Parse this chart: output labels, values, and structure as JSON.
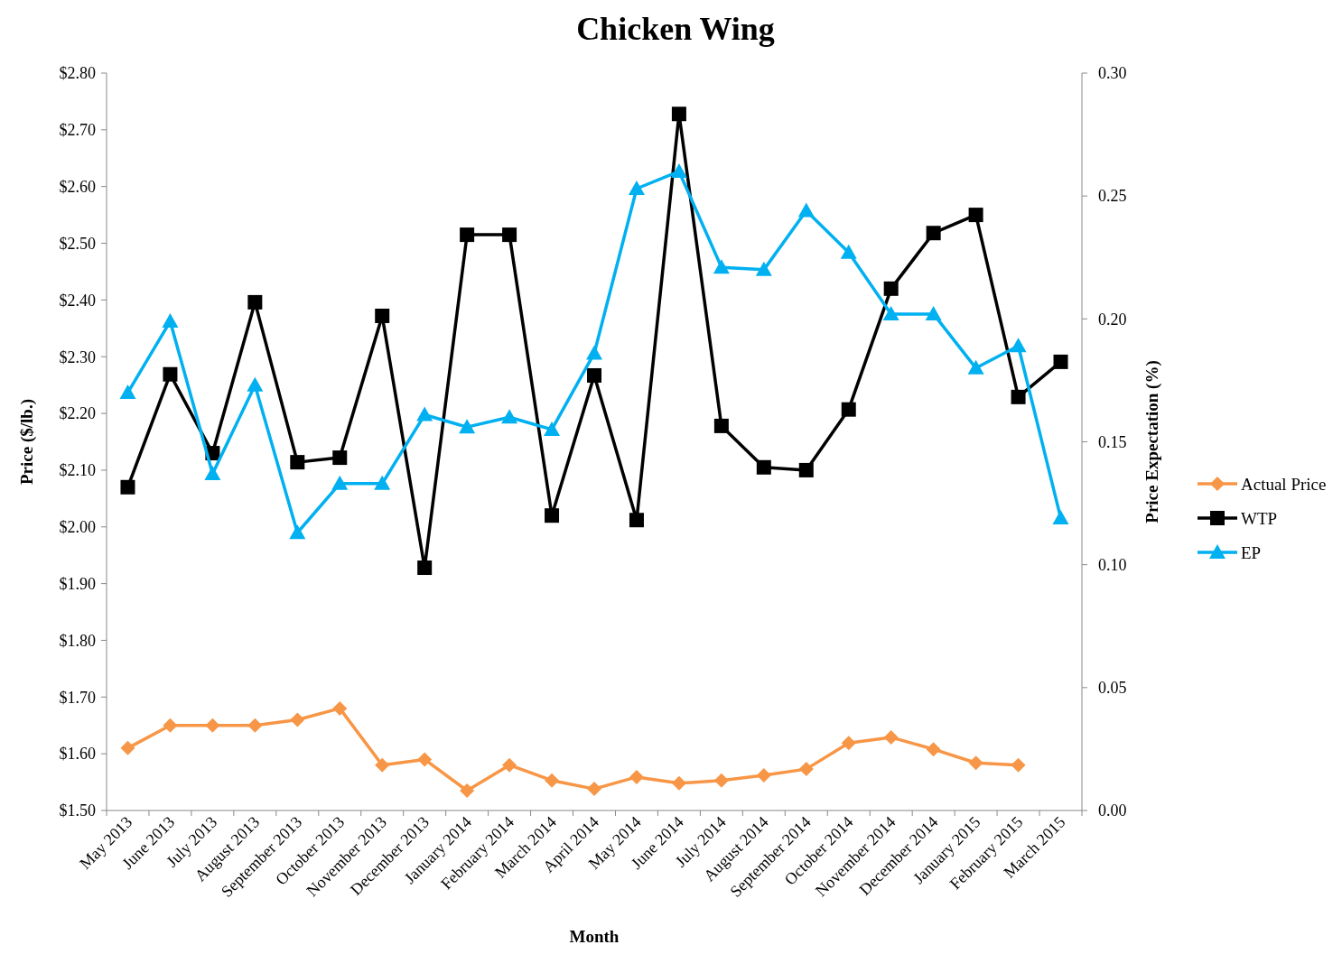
{
  "chart_data": {
    "type": "line",
    "title": "Chicken Wing",
    "xlabel": "Month",
    "ylabel": "Price ($/lb.)",
    "y2label": "Price Expectation (%)",
    "categories": [
      "May 2013",
      "June 2013",
      "July 2013",
      "August 2013",
      "September 2013",
      "October 2013",
      "November 2013",
      "December 2013",
      "January 2014",
      "February 2014",
      "March 2014",
      "April 2014",
      "May 2014",
      "June 2014",
      "July 2014",
      "August 2014",
      "September 2014",
      "October 2014",
      "November 2014",
      "December 2014",
      "January 2015",
      "February 2015",
      "March 2015"
    ],
    "series": [
      {
        "name": "Actual Price",
        "color": "#f79646",
        "marker": "diamond",
        "values": [
          1.61,
          1.65,
          1.65,
          1.65,
          1.66,
          1.68,
          1.58,
          1.59,
          1.535,
          1.58,
          1.553,
          1.538,
          1.559,
          1.548,
          1.553,
          1.562,
          1.573,
          1.619,
          1.629,
          1.608,
          1.584,
          1.58,
          null
        ]
      },
      {
        "name": "WTP",
        "color": "#000000",
        "marker": "square",
        "values": [
          2.07,
          2.269,
          2.13,
          2.396,
          2.114,
          2.122,
          2.372,
          1.928,
          2.515,
          2.515,
          2.02,
          2.267,
          2.012,
          2.728,
          2.178,
          2.105,
          2.1,
          2.207,
          2.42,
          2.518,
          2.55,
          2.229,
          2.291
        ]
      },
      {
        "name": "EP",
        "color": "#00b0f0",
        "marker": "triangle",
        "axis": "y2",
        "values": [
          0.17,
          0.199,
          0.137,
          0.173,
          0.113,
          0.133,
          0.133,
          0.161,
          0.156,
          0.16,
          0.155,
          0.186,
          0.253,
          0.26,
          0.221,
          0.22,
          0.244,
          0.227,
          0.202,
          0.202,
          0.18,
          0.189,
          0.119
        ]
      }
    ],
    "ylim": [
      1.5,
      2.8
    ],
    "yticks": [
      {
        "value": 1.5,
        "label": "$1.50"
      },
      {
        "value": 1.6,
        "label": "$1.60"
      },
      {
        "value": 1.7,
        "label": "$1.70"
      },
      {
        "value": 1.8,
        "label": "$1.80"
      },
      {
        "value": 1.9,
        "label": "$1.90"
      },
      {
        "value": 2.0,
        "label": "$2.00"
      },
      {
        "value": 2.1,
        "label": "$2.10"
      },
      {
        "value": 2.2,
        "label": "$2.20"
      },
      {
        "value": 2.3,
        "label": "$2.30"
      },
      {
        "value": 2.4,
        "label": "$2.40"
      },
      {
        "value": 2.5,
        "label": "$2.50"
      },
      {
        "value": 2.6,
        "label": "$2.60"
      },
      {
        "value": 2.7,
        "label": "$2.70"
      },
      {
        "value": 2.8,
        "label": "$2.80"
      }
    ],
    "y2lim": [
      0,
      0.3
    ],
    "y2ticks": [
      {
        "value": 0,
        "label": "0.00"
      },
      {
        "value": 0.05,
        "label": "0.05"
      },
      {
        "value": 0.1,
        "label": "0.10"
      },
      {
        "value": 0.15,
        "label": "0.15"
      },
      {
        "value": 0.2,
        "label": "0.20"
      },
      {
        "value": 0.25,
        "label": "0.25"
      },
      {
        "value": 0.3,
        "label": "0.30"
      }
    ],
    "grid": false,
    "legend": "right",
    "line_style": "solid"
  }
}
